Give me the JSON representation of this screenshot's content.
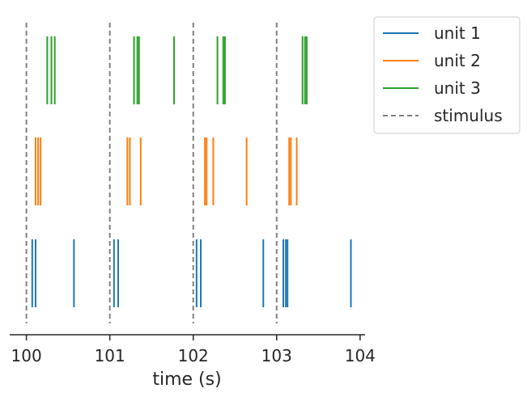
{
  "chart_data": {
    "type": "raster",
    "xlabel": "time (s)",
    "ylabel": "",
    "xlim": [
      99.8,
      104.06
    ],
    "xticks": [
      100,
      101,
      102,
      103,
      104
    ],
    "xtick_labels": [
      "100",
      "101",
      "102",
      "103",
      "104"
    ],
    "grid": false,
    "legend_position": "outside-top-right",
    "stimulus": {
      "name": "stimulus",
      "color": "#808080",
      "style": "dashed",
      "times": [
        100,
        101,
        102,
        103
      ]
    },
    "series": [
      {
        "name": "unit 1",
        "color": "#1f77b4",
        "spike_times": [
          100.07,
          100.11,
          100.57,
          101.05,
          101.1,
          102.04,
          102.09,
          102.84,
          103.08,
          103.11,
          103.13,
          103.89
        ]
      },
      {
        "name": "unit 2",
        "color": "#ff7f0e",
        "spike_times": [
          100.11,
          100.14,
          100.17,
          101.21,
          101.24,
          101.37,
          102.14,
          102.16,
          102.24,
          102.64,
          103.15,
          103.17,
          103.24
        ]
      },
      {
        "name": "unit 3",
        "color": "#2ca02c",
        "spike_times": [
          100.25,
          100.3,
          100.34,
          101.29,
          101.33,
          101.35,
          101.77,
          102.29,
          102.36,
          102.38,
          103.31,
          103.34,
          103.36
        ]
      }
    ],
    "legend": [
      "unit 1",
      "unit 2",
      "unit 3",
      "stimulus"
    ]
  }
}
